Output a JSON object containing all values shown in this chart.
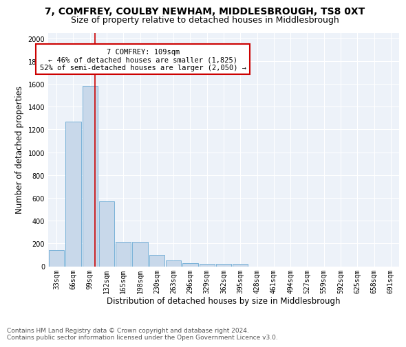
{
  "title": "7, COMFREY, COULBY NEWHAM, MIDDLESBROUGH, TS8 0XT",
  "subtitle": "Size of property relative to detached houses in Middlesbrough",
  "xlabel": "Distribution of detached houses by size in Middlesbrough",
  "ylabel": "Number of detached properties",
  "bar_labels": [
    "33sqm",
    "66sqm",
    "99sqm",
    "132sqm",
    "165sqm",
    "198sqm",
    "230sqm",
    "263sqm",
    "296sqm",
    "329sqm",
    "362sqm",
    "395sqm",
    "428sqm",
    "461sqm",
    "494sqm",
    "527sqm",
    "559sqm",
    "592sqm",
    "625sqm",
    "658sqm",
    "691sqm"
  ],
  "bar_values": [
    140,
    1270,
    1580,
    570,
    215,
    215,
    100,
    50,
    30,
    20,
    20,
    20,
    0,
    0,
    0,
    0,
    0,
    0,
    0,
    0,
    0
  ],
  "bar_color": "#c8d8ea",
  "bar_edge_color": "#6aaad4",
  "vline_color": "#cc0000",
  "annotation_text": "7 COMFREY: 109sqm\n← 46% of detached houses are smaller (1,825)\n52% of semi-detached houses are larger (2,050) →",
  "annotation_box_color": "white",
  "annotation_box_edge": "#cc0000",
  "ylim": [
    0,
    2050
  ],
  "yticks": [
    0,
    200,
    400,
    600,
    800,
    1000,
    1200,
    1400,
    1600,
    1800,
    2000
  ],
  "background_color": "#edf2f9",
  "footer_text": "Contains HM Land Registry data © Crown copyright and database right 2024.\nContains public sector information licensed under the Open Government Licence v3.0.",
  "title_fontsize": 10,
  "subtitle_fontsize": 9,
  "xlabel_fontsize": 8.5,
  "ylabel_fontsize": 8.5,
  "tick_fontsize": 7,
  "annot_fontsize": 7.5,
  "footer_fontsize": 6.5
}
